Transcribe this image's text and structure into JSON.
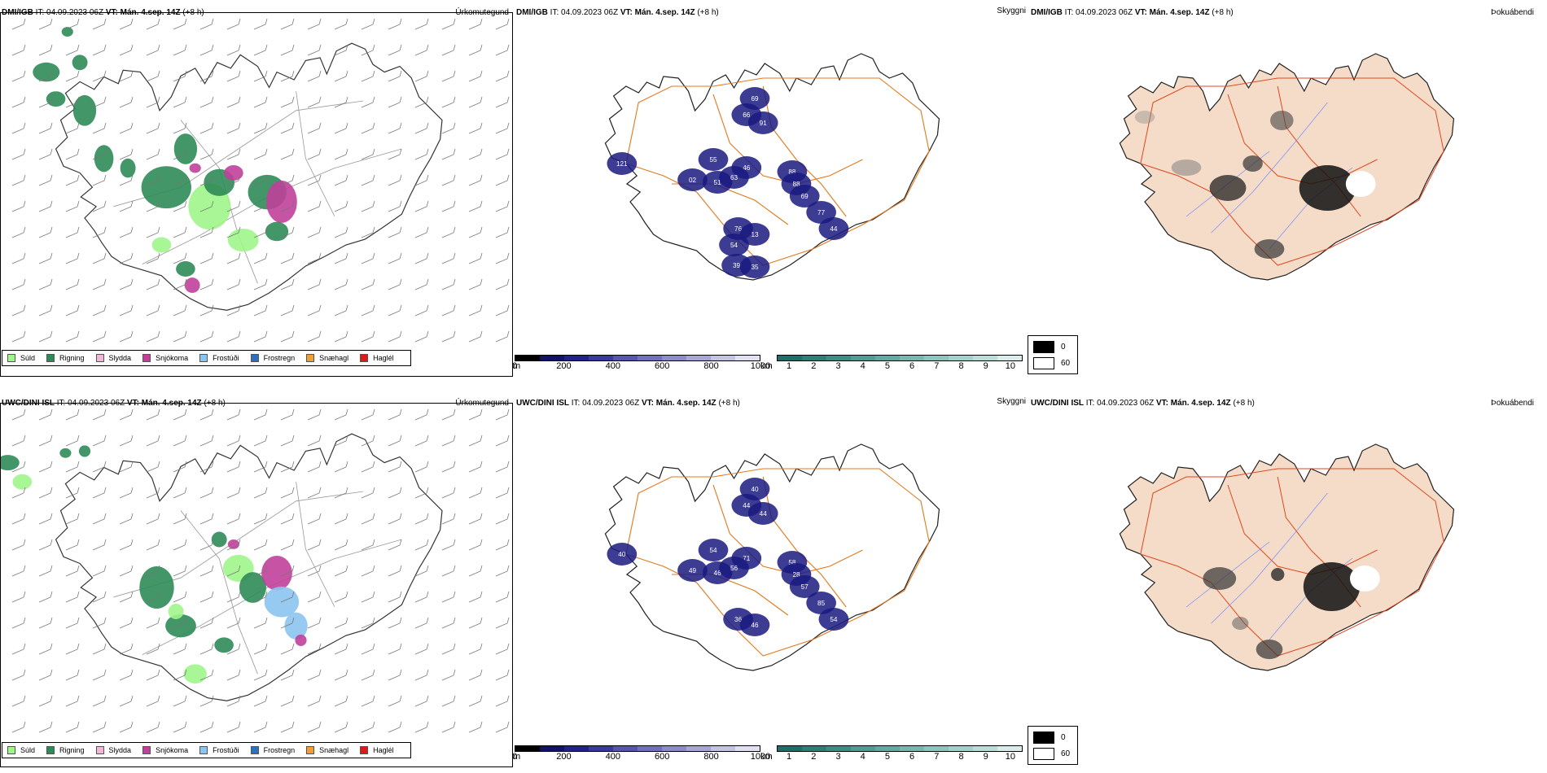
{
  "panels": {
    "dmi_precip": {
      "model": "DMI/IGB",
      "it_label": "IT:",
      "it_value": "04.09.2023 06Z",
      "vt_label": "VT:",
      "vt_value": "Mán. 4.sep. 14Z",
      "lead": "(+8 h)",
      "right_title": "Úrkomutegund"
    },
    "dmi_vis": {
      "model": "DMI/IGB",
      "it_label": "IT:",
      "it_value": "04.09.2023 06Z",
      "vt_label": "VT:",
      "vt_value": "Mán. 4.sep. 14Z",
      "lead": "(+8 h)",
      "right_title": "Skyggni"
    },
    "dmi_fog": {
      "model": "DMI/IGB",
      "it_label": "IT:",
      "it_value": "04.09.2023 06Z",
      "vt_label": "VT:",
      "vt_value": "Mán. 4.sep. 14Z",
      "lead": "(+8 h)",
      "right_title": "Þokuábendi"
    },
    "uwc_precip": {
      "model": "UWC/DINI ISL",
      "it_label": "IT:",
      "it_value": "04.09.2023 06Z",
      "vt_label": "VT:",
      "vt_value": "Mán. 4.sep. 14Z",
      "lead": "(+8 h)",
      "right_title": "Úrkomutegund"
    },
    "uwc_vis": {
      "model": "UWC/DINI ISL",
      "it_label": "IT:",
      "it_value": "04.09.2023 06Z",
      "vt_label": "VT:",
      "vt_value": "Mán. 4.sep. 14Z",
      "lead": "(+8 h)",
      "right_title": "Skyggni"
    },
    "uwc_fog": {
      "model": "UWC/DINI ISL",
      "it_label": "IT:",
      "it_value": "04.09.2023 06Z",
      "vt_label": "VT:",
      "vt_value": "Mán. 4.sep. 14Z",
      "lead": "(+8 h)",
      "right_title": "Þokuábendi"
    }
  },
  "precip_legend": [
    {
      "label": "Súld",
      "color": "#9ef58a"
    },
    {
      "label": "Rigning",
      "color": "#2e8b57"
    },
    {
      "label": "Slydda",
      "color": "#f4b6d8"
    },
    {
      "label": "Snjókoma",
      "color": "#c0409a"
    },
    {
      "label": "Frostúði",
      "color": "#8cc4f0"
    },
    {
      "label": "Frostregn",
      "color": "#2f6fbf"
    },
    {
      "label": "Snæhagl",
      "color": "#f0a030"
    },
    {
      "label": "Haglél",
      "color": "#e01818"
    }
  ],
  "vis_legend_m": {
    "unit": "m",
    "ticks": [
      "0",
      "200",
      "400",
      "600",
      "800",
      "1000"
    ],
    "colors": [
      "#000000",
      "#121266",
      "#22228a",
      "#3a3a9e",
      "#5656ae",
      "#7070bc",
      "#8c8cc8",
      "#a8a8d6",
      "#c4c4e4",
      "#e0e0f2"
    ]
  },
  "vis_legend_km": {
    "unit": "km",
    "ticks": [
      "1",
      "2",
      "3",
      "4",
      "5",
      "6",
      "7",
      "8",
      "9",
      "10"
    ],
    "colors": [
      "#1f6e6a",
      "#2f7e78",
      "#3f8e86",
      "#519c94",
      "#64aaa2",
      "#78b8b0",
      "#8cc6be",
      "#a2d2cc",
      "#bcdeda",
      "#d8ecea"
    ]
  },
  "fog_legend": [
    {
      "label": "0",
      "color": "#000000"
    },
    {
      "label": "60",
      "color": "#ffffff"
    }
  ],
  "vis_labels_top": [
    "69",
    "66",
    "91",
    "121",
    "88",
    "55",
    "46",
    "02",
    "51",
    "63",
    "88",
    "69",
    "77",
    "44",
    "76",
    "13",
    "54",
    "39",
    "35"
  ],
  "vis_labels_bottom": [
    "40",
    "44",
    "44",
    "40",
    "58",
    "54",
    "71",
    "49",
    "46",
    "56",
    "28",
    "57",
    "85",
    "54",
    "36",
    "46"
  ]
}
